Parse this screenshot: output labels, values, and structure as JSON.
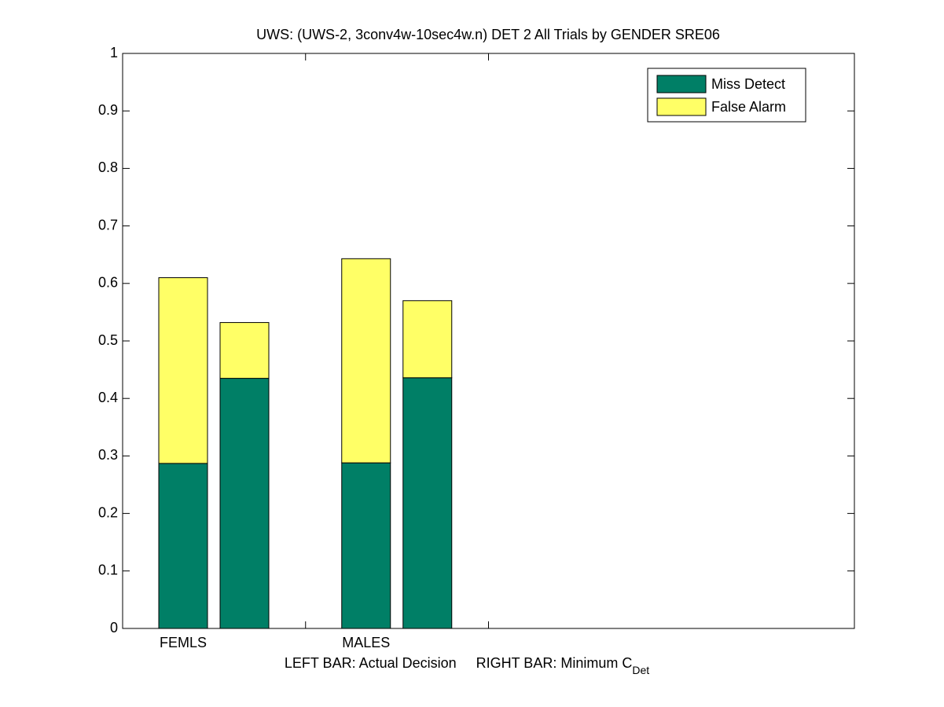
{
  "chart_data": {
    "type": "stacked_bar",
    "title": "UWS: (UWS-2, 3conv4w-10sec4w.n) DET 2 All Trials by GENDER SRE06",
    "xlabel": "LEFT BAR: Actual Decision     RIGHT BAR: Minimum C",
    "xlabel_subscript": "Det",
    "categories": [
      "FEMLS",
      null,
      "MALES",
      null
    ],
    "series": [
      {
        "name": "Miss Detect",
        "color": "#007f66",
        "values": [
          0.287,
          0.435,
          0.288,
          0.436
        ]
      },
      {
        "name": "False Alarm",
        "color": "#ffff66",
        "values": [
          0.323,
          0.097,
          0.355,
          0.134
        ]
      }
    ],
    "ylim": [
      0,
      1
    ],
    "yticks": [
      0,
      0.1,
      0.2,
      0.3,
      0.4,
      0.5,
      0.6,
      0.7,
      0.8,
      0.9,
      1
    ],
    "grid": false,
    "legend": "northeast"
  }
}
